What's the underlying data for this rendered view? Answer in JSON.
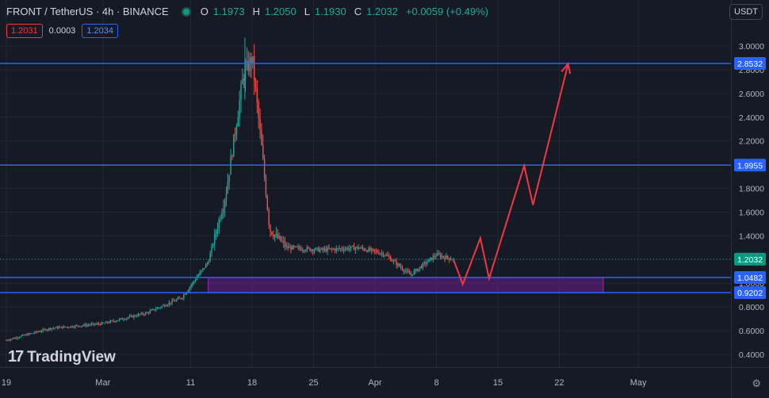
{
  "header": {
    "symbol": "FRONT / TetherUS · 4h · BINANCE",
    "ohlc": [
      {
        "k": "O",
        "v": "1.1973"
      },
      {
        "k": "H",
        "v": "1.2050"
      },
      {
        "k": "L",
        "v": "1.1930"
      },
      {
        "k": "C",
        "v": "1.2032"
      }
    ],
    "change": "+0.0059 (+0.49%)",
    "bid": "1.2031",
    "spread": "0.0003",
    "ask": "1.2034",
    "currency": "USDT"
  },
  "brand": {
    "logo_text": "TradingView",
    "logo_mark": "17"
  },
  "colors": {
    "bg": "#161a25",
    "up": "#26a69a",
    "down": "#ef5350",
    "level": "#2962ff",
    "zone": "#7b1fa2",
    "path": "#f23645"
  },
  "chart_data": {
    "type": "candlestick",
    "ylim": [
      0.4,
      3.0
    ],
    "y_ticks": [
      "3.0000",
      "2.8000",
      "2.6000",
      "2.4000",
      "2.2000",
      "2.0000",
      "1.8000",
      "1.6000",
      "1.4000",
      "1.2000",
      "1.0000",
      "0.8000",
      "0.6000",
      "0.4000"
    ],
    "x_ticks": [
      "19",
      "Mar",
      "11",
      "18",
      "25",
      "Apr",
      "8",
      "15",
      "22",
      "May"
    ],
    "price_path": [
      {
        "date": "2024-02-19",
        "price": 0.52
      },
      {
        "date": "2024-02-24",
        "price": 0.62
      },
      {
        "date": "2024-03-01",
        "price": 0.66
      },
      {
        "date": "2024-03-06",
        "price": 0.75
      },
      {
        "date": "2024-03-10",
        "price": 0.88
      },
      {
        "date": "2024-03-13",
        "price": 1.18
      },
      {
        "date": "2024-03-15",
        "price": 1.75
      },
      {
        "date": "2024-03-17",
        "price": 2.75
      },
      {
        "date": "2024-03-18",
        "price": 2.9
      },
      {
        "date": "2024-03-19",
        "price": 2.2
      },
      {
        "date": "2024-03-20",
        "price": 1.45
      },
      {
        "date": "2024-03-22",
        "price": 1.3
      },
      {
        "date": "2024-03-26",
        "price": 1.28
      },
      {
        "date": "2024-03-30",
        "price": 1.3
      },
      {
        "date": "2024-04-02",
        "price": 1.25
      },
      {
        "date": "2024-04-05",
        "price": 1.07
      },
      {
        "date": "2024-04-08",
        "price": 1.24
      },
      {
        "date": "2024-04-10",
        "price": 1.2
      }
    ],
    "max_wick": 3.07,
    "levels": [
      {
        "label": "2.8532",
        "value": 2.8532
      },
      {
        "label": "1.9955",
        "value": 1.9955
      },
      {
        "label": "1.0482",
        "value": 1.0482
      },
      {
        "label": "0.9202",
        "value": 0.9202
      }
    ],
    "last_price": {
      "label": "1.2032",
      "value": 1.2032
    },
    "zone": {
      "from": "2024-03-13",
      "to": "2024-04-27",
      "low": 0.9202,
      "high": 1.0482
    },
    "projection": [
      {
        "date": "2024-04-10",
        "price": 1.19
      },
      {
        "date": "2024-04-11",
        "price": 0.99
      },
      {
        "date": "2024-04-13",
        "price": 1.38
      },
      {
        "date": "2024-04-14",
        "price": 1.04
      },
      {
        "date": "2024-04-18",
        "price": 1.99
      },
      {
        "date": "2024-04-19",
        "price": 1.66
      },
      {
        "date": "2024-04-23",
        "price": 2.85
      }
    ]
  }
}
